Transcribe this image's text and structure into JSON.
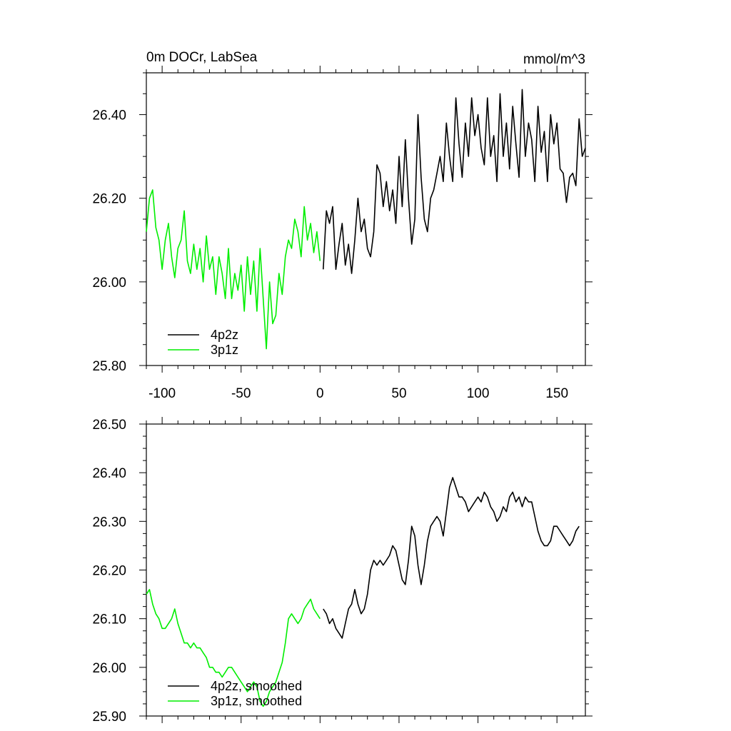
{
  "colors": {
    "series_a": "#000000",
    "series_b": "#00ee00",
    "axis": "#000000",
    "background": "#ffffff"
  },
  "chart_data": [
    {
      "type": "line",
      "title": "0m DOCr, LabSea",
      "units": "mmol/m^3",
      "xlabel": "",
      "ylabel": "",
      "xlim": [
        -110,
        168
      ],
      "ylim": [
        25.8,
        26.5
      ],
      "xticks": [
        -100,
        -50,
        0,
        50,
        100,
        150
      ],
      "xtick_labels": [
        "-100",
        "-50",
        "0",
        "50",
        "100",
        "150"
      ],
      "yticks": [
        25.8,
        26.0,
        26.2,
        26.4
      ],
      "ytick_labels": [
        "25.80",
        "26.00",
        "26.20",
        "26.40"
      ],
      "legend_position": "bottom-left",
      "series": [
        {
          "name": "4p2z",
          "color": "#000000",
          "x": [
            2,
            4,
            6,
            8,
            10,
            12,
            14,
            16,
            18,
            20,
            22,
            24,
            26,
            28,
            30,
            32,
            34,
            36,
            38,
            40,
            42,
            44,
            46,
            48,
            50,
            52,
            54,
            56,
            58,
            60,
            62,
            64,
            66,
            68,
            70,
            72,
            74,
            76,
            78,
            80,
            82,
            84,
            86,
            88,
            90,
            92,
            94,
            96,
            98,
            100,
            102,
            104,
            106,
            108,
            110,
            112,
            114,
            116,
            118,
            120,
            122,
            124,
            126,
            128,
            130,
            132,
            134,
            136,
            138,
            140,
            142,
            144,
            146,
            148,
            150,
            152,
            154,
            156,
            158,
            160,
            162,
            164,
            166,
            168
          ],
          "y": [
            26.03,
            26.17,
            26.14,
            26.18,
            26.03,
            26.09,
            26.14,
            26.04,
            26.09,
            26.02,
            26.1,
            26.2,
            26.12,
            26.15,
            26.08,
            26.06,
            26.12,
            26.28,
            26.26,
            26.18,
            26.24,
            26.17,
            26.22,
            26.14,
            26.3,
            26.18,
            26.34,
            26.2,
            26.09,
            26.15,
            26.4,
            26.25,
            26.15,
            26.12,
            26.2,
            26.22,
            26.26,
            26.3,
            26.24,
            26.38,
            26.3,
            26.24,
            26.44,
            26.33,
            26.25,
            26.38,
            26.3,
            26.44,
            26.35,
            26.4,
            26.32,
            26.28,
            26.44,
            26.3,
            26.35,
            26.24,
            26.45,
            26.3,
            26.38,
            26.27,
            26.42,
            26.33,
            26.25,
            26.46,
            26.3,
            26.38,
            26.34,
            26.24,
            26.42,
            26.31,
            26.36,
            26.24,
            26.4,
            26.33,
            26.38,
            26.27,
            26.26,
            26.19,
            26.25,
            26.26,
            26.23,
            26.39,
            26.3,
            26.32
          ]
        },
        {
          "name": "3p1z",
          "color": "#00ee00",
          "x": [
            -110,
            -108,
            -106,
            -104,
            -102,
            -100,
            -98,
            -96,
            -94,
            -92,
            -90,
            -88,
            -86,
            -84,
            -82,
            -80,
            -78,
            -76,
            -74,
            -72,
            -70,
            -68,
            -66,
            -64,
            -62,
            -60,
            -58,
            -56,
            -54,
            -52,
            -50,
            -48,
            -46,
            -44,
            -42,
            -40,
            -38,
            -36,
            -34,
            -32,
            -30,
            -28,
            -26,
            -24,
            -22,
            -20,
            -18,
            -16,
            -14,
            -12,
            -10,
            -8,
            -6,
            -4,
            -2,
            0
          ],
          "y": [
            26.12,
            26.2,
            26.22,
            26.13,
            26.1,
            26.03,
            26.1,
            26.14,
            26.06,
            26.01,
            26.08,
            26.1,
            26.17,
            26.05,
            26.02,
            26.09,
            26.03,
            26.08,
            26.0,
            26.11,
            26.03,
            26.06,
            25.97,
            26.06,
            26.02,
            25.96,
            26.08,
            25.96,
            26.02,
            25.98,
            26.04,
            25.93,
            26.06,
            25.97,
            26.05,
            25.93,
            26.08,
            25.96,
            25.84,
            26.0,
            25.9,
            25.92,
            26.02,
            25.97,
            26.06,
            26.1,
            26.08,
            26.15,
            26.12,
            26.06,
            26.18,
            26.1,
            26.14,
            26.07,
            26.12,
            26.05
          ]
        }
      ]
    },
    {
      "type": "line",
      "title": "",
      "xlabel": "",
      "ylabel": "",
      "xlim": [
        -110,
        168
      ],
      "ylim": [
        25.9,
        26.5
      ],
      "xticks": [
        -100,
        -50,
        0,
        50,
        100,
        150
      ],
      "yticks": [
        25.9,
        26.0,
        26.1,
        26.2,
        26.3,
        26.4,
        26.5
      ],
      "ytick_labels": [
        "25.90",
        "26.00",
        "26.10",
        "26.20",
        "26.30",
        "26.40",
        "26.50"
      ],
      "legend_position": "bottom-left",
      "series": [
        {
          "name": "4p2z, smoothed",
          "color": "#000000",
          "x": [
            2,
            4,
            6,
            8,
            10,
            12,
            14,
            16,
            18,
            20,
            22,
            24,
            26,
            28,
            30,
            32,
            34,
            36,
            38,
            40,
            42,
            44,
            46,
            48,
            50,
            52,
            54,
            56,
            58,
            60,
            62,
            64,
            66,
            68,
            70,
            72,
            74,
            76,
            78,
            80,
            82,
            84,
            86,
            88,
            90,
            92,
            94,
            96,
            98,
            100,
            102,
            104,
            106,
            108,
            110,
            112,
            114,
            116,
            118,
            120,
            122,
            124,
            126,
            128,
            130,
            132,
            134,
            136,
            138,
            140,
            142,
            144,
            146,
            148,
            150,
            152,
            154,
            156,
            158,
            160,
            162,
            164
          ],
          "y": [
            26.12,
            26.11,
            26.09,
            26.1,
            26.08,
            26.07,
            26.06,
            26.09,
            26.12,
            26.13,
            26.16,
            26.13,
            26.11,
            26.12,
            26.15,
            26.2,
            26.22,
            26.21,
            26.22,
            26.21,
            26.22,
            26.23,
            26.25,
            26.24,
            26.21,
            26.18,
            26.17,
            26.22,
            26.29,
            26.27,
            26.21,
            26.17,
            26.21,
            26.26,
            26.29,
            26.3,
            26.31,
            26.3,
            26.27,
            26.32,
            26.37,
            26.39,
            26.37,
            26.35,
            26.35,
            26.34,
            26.32,
            26.33,
            26.34,
            26.35,
            26.34,
            26.36,
            26.35,
            26.33,
            26.32,
            26.3,
            26.31,
            26.33,
            26.32,
            26.35,
            26.36,
            26.34,
            26.35,
            26.33,
            26.35,
            26.34,
            26.34,
            26.31,
            26.28,
            26.26,
            26.25,
            26.25,
            26.26,
            26.29,
            26.29,
            26.28,
            26.27,
            26.26,
            26.25,
            26.26,
            26.28,
            26.29
          ]
        },
        {
          "name": "3p1z, smoothed",
          "color": "#00ee00",
          "x": [
            -110,
            -108,
            -106,
            -104,
            -102,
            -100,
            -98,
            -96,
            -94,
            -92,
            -90,
            -88,
            -86,
            -84,
            -82,
            -80,
            -78,
            -76,
            -74,
            -72,
            -70,
            -68,
            -66,
            -64,
            -62,
            -60,
            -58,
            -56,
            -54,
            -52,
            -50,
            -48,
            -46,
            -44,
            -42,
            -40,
            -38,
            -36,
            -34,
            -32,
            -30,
            -28,
            -26,
            -24,
            -22,
            -20,
            -18,
            -16,
            -14,
            -12,
            -10,
            -8,
            -6,
            -4,
            -2,
            0
          ],
          "y": [
            26.15,
            26.16,
            26.13,
            26.11,
            26.1,
            26.08,
            26.08,
            26.09,
            26.1,
            26.12,
            26.09,
            26.07,
            26.05,
            26.05,
            26.04,
            26.05,
            26.04,
            26.04,
            26.03,
            26.02,
            26.0,
            26.0,
            25.99,
            25.99,
            25.98,
            25.99,
            26.0,
            26.0,
            25.99,
            25.98,
            25.97,
            25.96,
            25.95,
            25.96,
            25.97,
            25.96,
            25.93,
            25.92,
            25.93,
            25.95,
            25.96,
            25.97,
            25.99,
            26.01,
            26.05,
            26.1,
            26.11,
            26.1,
            26.09,
            26.1,
            26.12,
            26.13,
            26.14,
            26.12,
            26.11,
            26.1
          ]
        }
      ]
    }
  ]
}
